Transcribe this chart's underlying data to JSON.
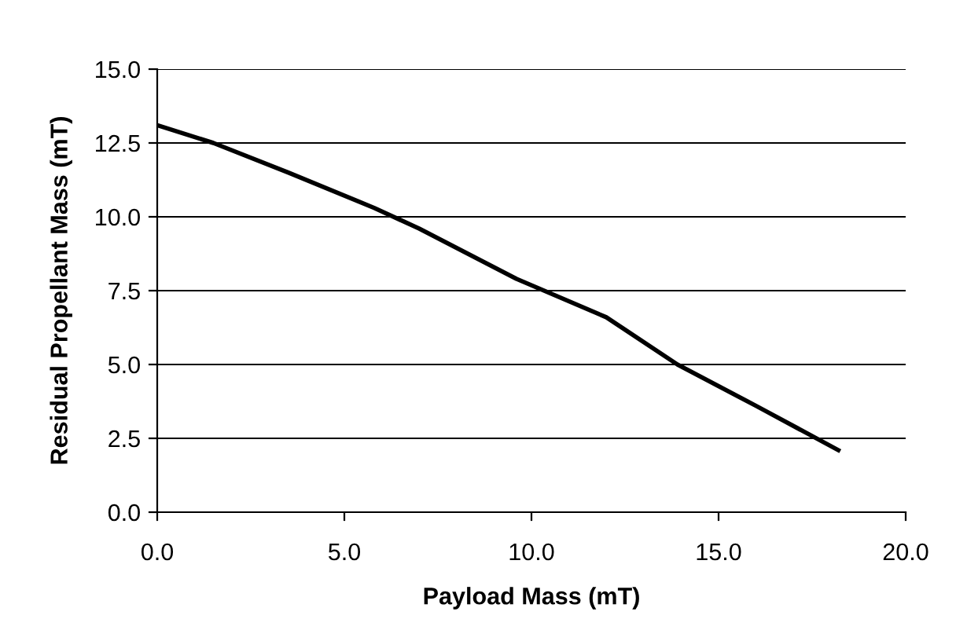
{
  "chart_data": {
    "type": "line",
    "xlabel": "Payload Mass (mT)",
    "ylabel": "Residual Propellant Mass (mT)",
    "x": [
      0,
      1.5,
      3.5,
      5.8,
      7,
      9.6,
      12,
      13.9,
      16,
      18.2
    ],
    "series": [
      {
        "color": "#000000",
        "values": [
          13.1,
          12.5,
          11.5,
          10.3,
          9.6,
          7.9,
          6.6,
          5.0,
          3.6,
          2.1
        ]
      }
    ],
    "xlim": [
      0,
      20
    ],
    "ylim": [
      0,
      15
    ],
    "xticks": [
      {
        "value": 0,
        "label": "0.0"
      },
      {
        "value": 5,
        "label": "5.0"
      },
      {
        "value": 10,
        "label": "10.0"
      },
      {
        "value": 15,
        "label": "15.0"
      },
      {
        "value": 20,
        "label": "20.0"
      }
    ],
    "yticks": [
      {
        "value": 0,
        "label": "0.0"
      },
      {
        "value": 2.5,
        "label": "2.5"
      },
      {
        "value": 5,
        "label": "5.0"
      },
      {
        "value": 7.5,
        "label": "7.5"
      },
      {
        "value": 10,
        "label": "10.0"
      },
      {
        "value": 12.5,
        "label": "12.5"
      },
      {
        "value": 15,
        "label": "15.0"
      }
    ],
    "grid": "y",
    "legend": false,
    "marker": "none",
    "line_style": "solid"
  }
}
